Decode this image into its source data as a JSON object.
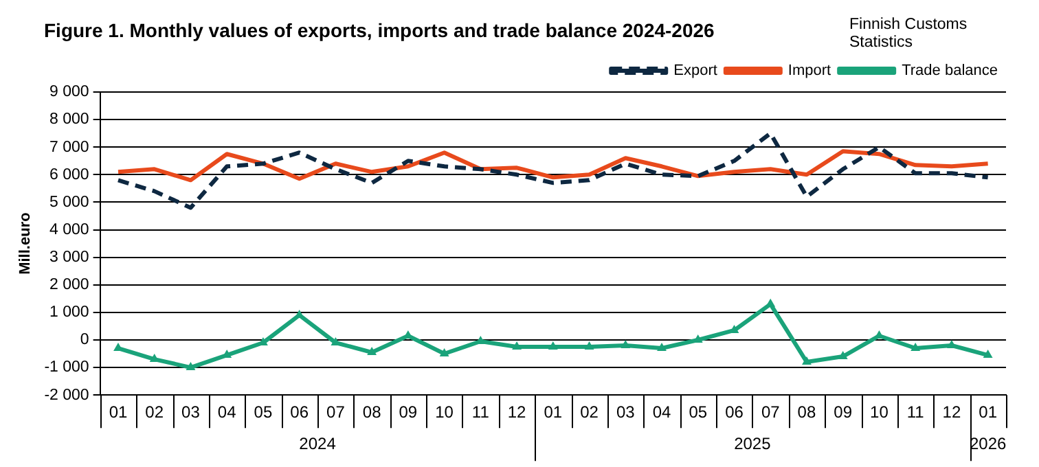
{
  "chart_data": {
    "type": "line",
    "title": "Figure 1. Monthly values of exports, imports and trade balance 2024-2026",
    "subtitle": "Finnish Customs Statistics",
    "ylabel": "Mill.euro",
    "categories": [
      "01",
      "02",
      "03",
      "04",
      "05",
      "06",
      "07",
      "08",
      "09",
      "10",
      "11",
      "12",
      "01",
      "02",
      "03",
      "04",
      "05",
      "06",
      "07",
      "08",
      "09",
      "10",
      "11",
      "12",
      "01"
    ],
    "series": [
      {
        "name": "Export",
        "color": "#0e2841",
        "line_style": "dashed",
        "marker": "none",
        "values": [
          5800,
          5400,
          4800,
          6300,
          6400,
          6800,
          6200,
          5700,
          6500,
          6300,
          6200,
          6000,
          5700,
          5800,
          6400,
          6000,
          5950,
          6500,
          7500,
          5200,
          6200,
          7000,
          6050,
          6050,
          5900
        ]
      },
      {
        "name": "Import",
        "color": "#e84a1c",
        "line_style": "solid",
        "marker": "none",
        "values": [
          6100,
          6200,
          5800,
          6750,
          6400,
          5850,
          6400,
          6100,
          6300,
          6800,
          6200,
          6250,
          5900,
          6000,
          6600,
          6300,
          5950,
          6100,
          6200,
          6000,
          6850,
          6750,
          6350,
          6300,
          6400
        ]
      },
      {
        "name": "Trade balance",
        "color": "#1aa37a",
        "line_style": "solid",
        "marker": "triangle",
        "values": [
          -300,
          -700,
          -1000,
          -550,
          -100,
          900,
          -100,
          -450,
          150,
          -500,
          -50,
          -250,
          -250,
          -250,
          -200,
          -300,
          0,
          350,
          1300,
          -800,
          -600,
          150,
          -300,
          -200,
          -550
        ]
      }
    ],
    "ylim": [
      -2000,
      9000
    ],
    "yticks": [
      {
        "value": -2000,
        "label": "-2 000"
      },
      {
        "value": -1000,
        "label": "-1 000"
      },
      0,
      {
        "value": 1000,
        "label": "1 000"
      },
      {
        "value": 2000,
        "label": "2 000"
      },
      {
        "value": 3000,
        "label": "3 000"
      },
      {
        "value": 4000,
        "label": "4 000"
      },
      {
        "value": 5000,
        "label": "5 000"
      },
      {
        "value": 6000,
        "label": "6 000"
      },
      {
        "value": 7000,
        "label": "7 000"
      },
      {
        "value": 8000,
        "label": "8 000"
      },
      {
        "value": 9000,
        "label": "9 000"
      }
    ],
    "annotations": [
      "2024",
      "2025",
      "2026"
    ],
    "grid": "y",
    "legend": "top right"
  }
}
